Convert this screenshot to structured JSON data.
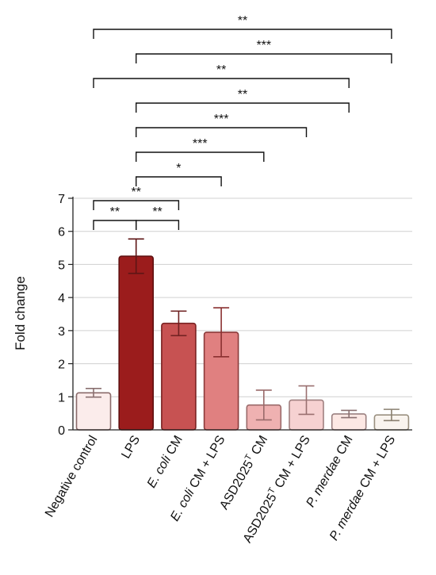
{
  "chart_data": {
    "type": "bar",
    "ylabel": "Fold change",
    "ylim": [
      0,
      7
    ],
    "yticks": [
      "0",
      "1",
      "2",
      "3",
      "4",
      "5",
      "6",
      "7"
    ],
    "grid": true,
    "categories": [
      {
        "main": "Negative control",
        "italic": "",
        "sup": "",
        "tail": ""
      },
      {
        "main": "LPS",
        "italic": "",
        "sup": "",
        "tail": ""
      },
      {
        "main": "",
        "italic": "E. coli",
        "sup": "",
        "tail": " CM"
      },
      {
        "main": "",
        "italic": "E. coli",
        "sup": "",
        "tail": " CM + LPS"
      },
      {
        "main": "ASD2025",
        "italic": "",
        "sup": "T",
        "tail": " CM"
      },
      {
        "main": "ASD2025",
        "italic": "",
        "sup": "T",
        "tail": " CM + LPS"
      },
      {
        "main": "",
        "italic": "P. merdae",
        "sup": "",
        "tail": " CM"
      },
      {
        "main": "",
        "italic": "P. merdae",
        "sup": "",
        "tail": " CM + LPS"
      }
    ],
    "values": [
      1.12,
      5.25,
      3.22,
      2.95,
      0.75,
      0.9,
      0.48,
      0.45
    ],
    "errors": [
      0.13,
      0.52,
      0.37,
      0.74,
      0.45,
      0.43,
      0.11,
      0.17
    ],
    "colors": [
      "#fbeceb",
      "#9b1c1c",
      "#c75252",
      "#e08080",
      "#efb1b1",
      "#f6d1d1",
      "#fce8e4",
      "#f9f4ef"
    ],
    "edge_colors": [
      "#8a6a6a",
      "#5e1010",
      "#7a2222",
      "#8a3a3a",
      "#9a6a6a",
      "#a08080",
      "#9a8080",
      "#9a9080"
    ],
    "error_colors": [
      "#8a7070",
      "#5e1515",
      "#6e2020",
      "#8a3030",
      "#9a6a6a",
      "#9a7070",
      "#8a7070",
      "#8a8070"
    ],
    "significance": [
      {
        "a": 0,
        "b": 7,
        "label": "**"
      },
      {
        "a": 1,
        "b": 7,
        "label": "***"
      },
      {
        "a": 0,
        "b": 6,
        "label": "**"
      },
      {
        "a": 1,
        "b": 6,
        "label": "**"
      },
      {
        "a": 1,
        "b": 5,
        "label": "***"
      },
      {
        "a": 1,
        "b": 4,
        "label": "***"
      },
      {
        "a": 1,
        "b": 3,
        "label": "*"
      },
      {
        "a": 0,
        "b": 2,
        "label": "**"
      },
      {
        "a": 0,
        "b": 1,
        "label": "**"
      },
      {
        "a": 1,
        "b": 2,
        "label": "**"
      }
    ]
  }
}
